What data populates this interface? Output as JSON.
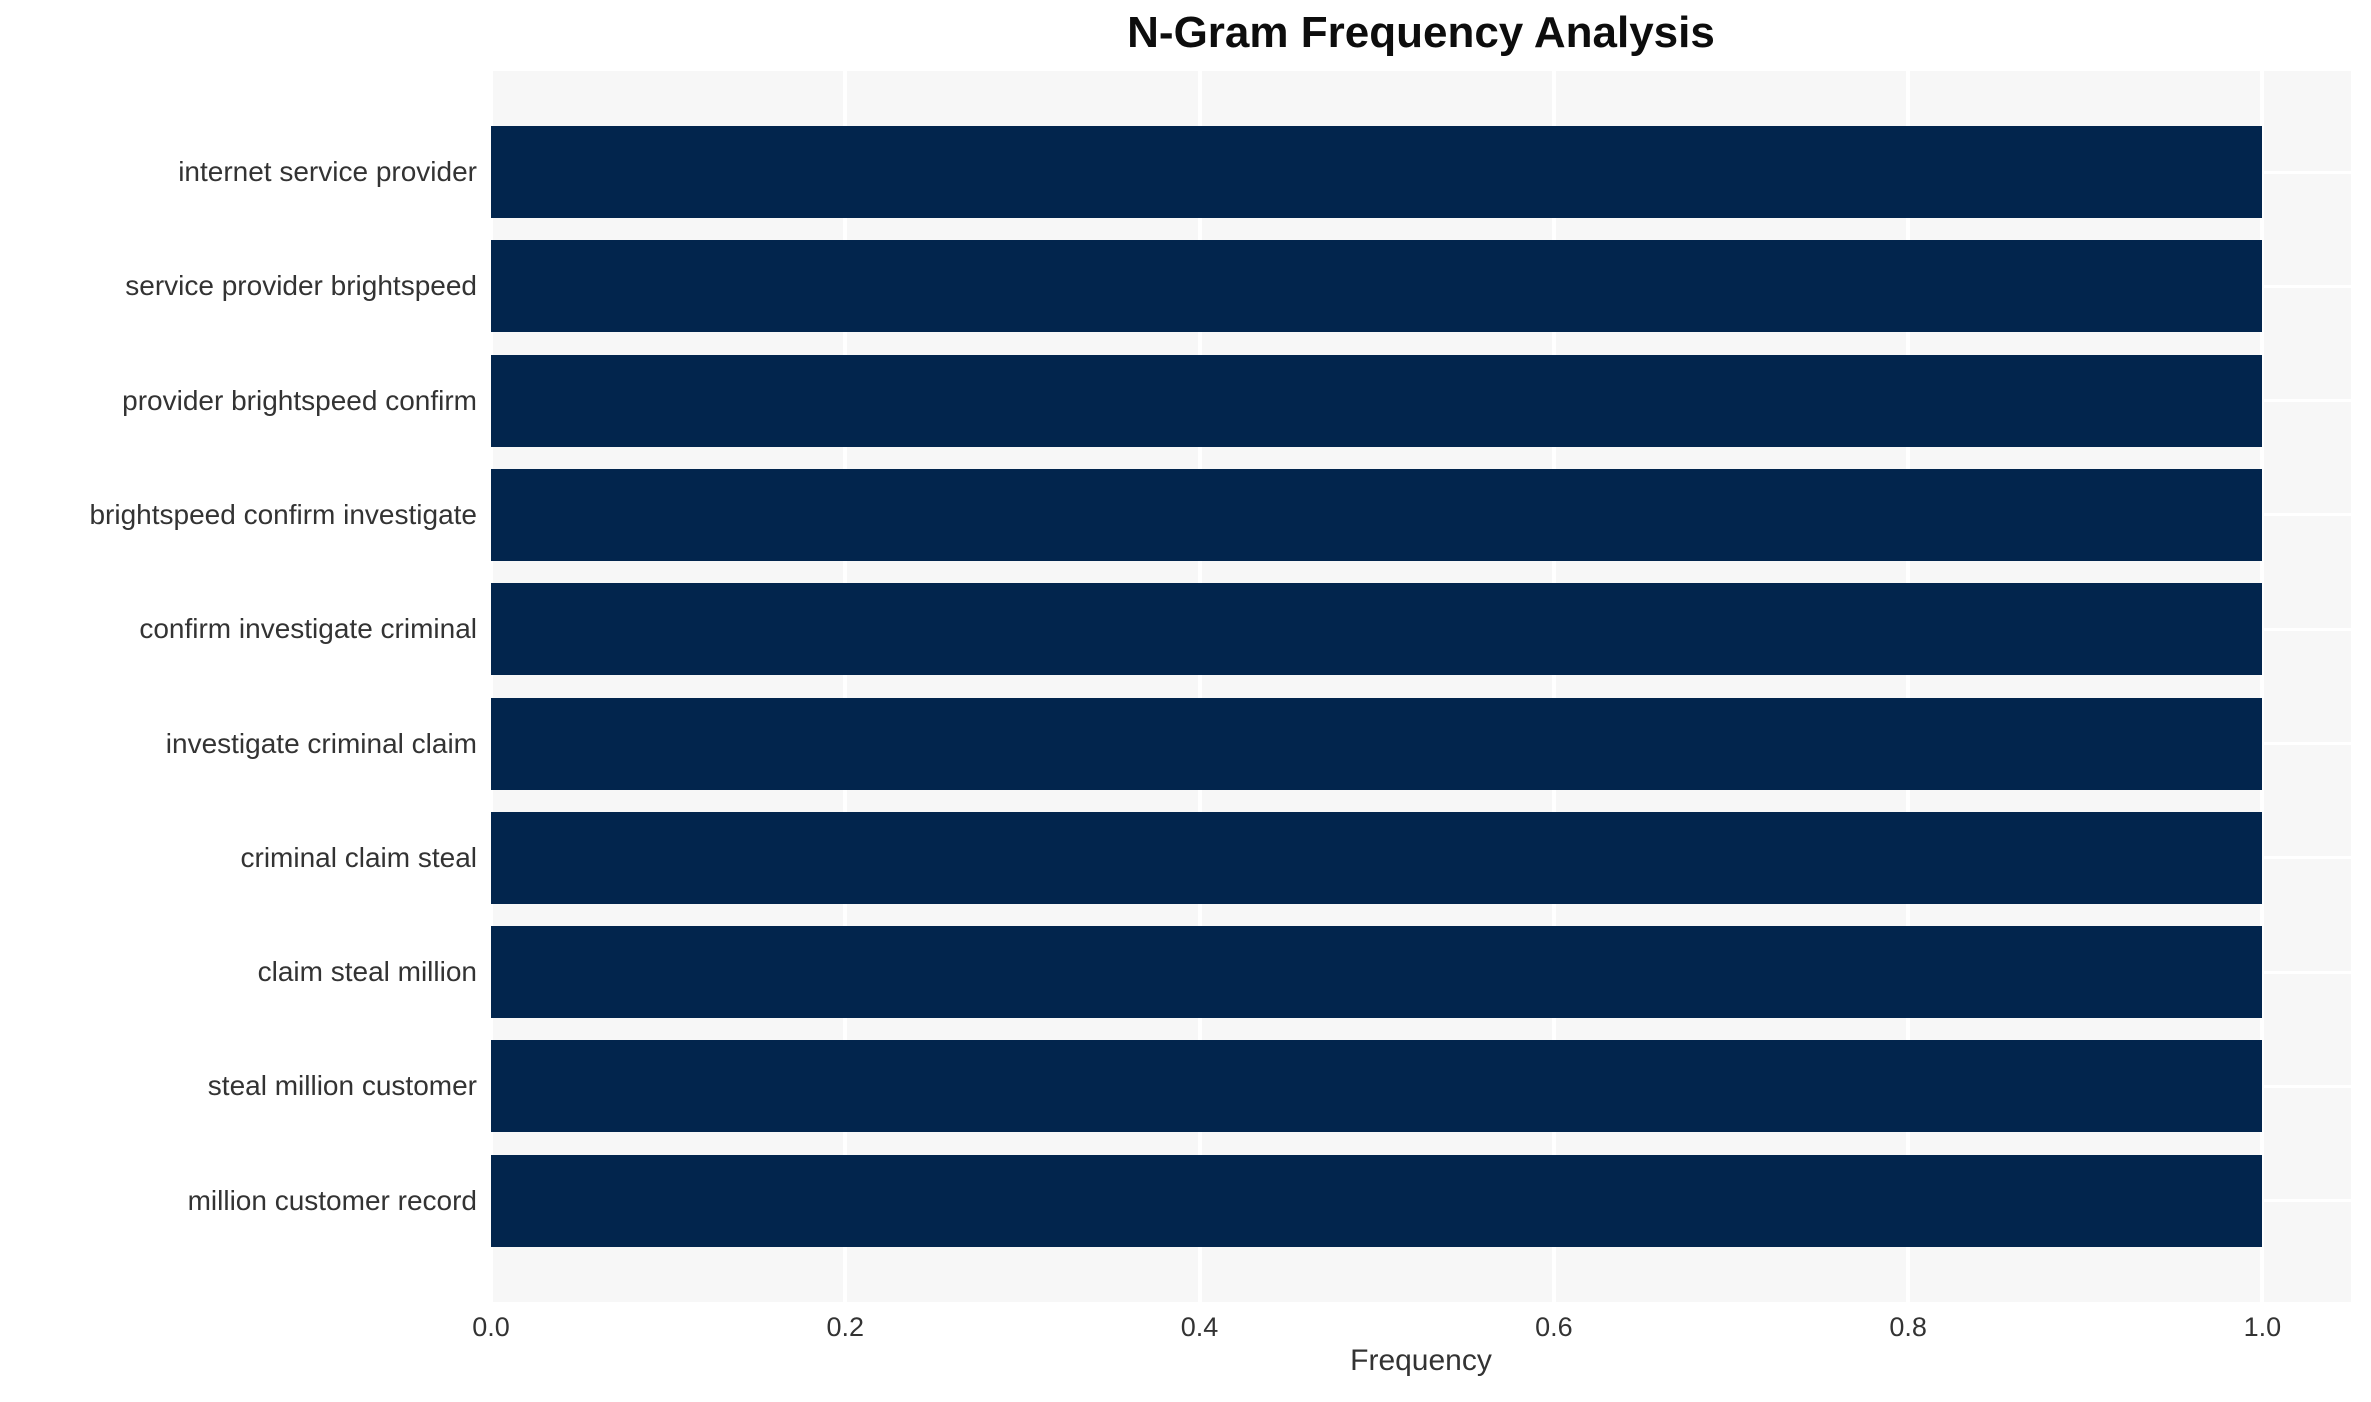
{
  "header": {
    "title": "N-Gram Frequency Analysis"
  },
  "chart_data": {
    "type": "bar",
    "orientation": "horizontal",
    "title": "N-Gram Frequency Analysis",
    "xlabel": "Frequency",
    "ylabel": "",
    "categories": [
      "internet service provider",
      "service provider brightspeed",
      "provider brightspeed confirm",
      "brightspeed confirm investigate",
      "confirm investigate criminal",
      "investigate criminal claim",
      "criminal claim steal",
      "claim steal million",
      "steal million customer",
      "million customer record"
    ],
    "values": [
      1.0,
      1.0,
      1.0,
      1.0,
      1.0,
      1.0,
      1.0,
      1.0,
      1.0,
      1.0
    ],
    "xlim": [
      0,
      1.05
    ],
    "xticks": [
      0.0,
      0.2,
      0.4,
      0.6,
      0.8,
      1.0
    ],
    "xtick_labels": [
      "0.0",
      "0.2",
      "0.4",
      "0.6",
      "0.8",
      "1.0"
    ],
    "grid": true,
    "legend": false,
    "colors": {
      "bar": "#02254d",
      "plot_background": "#f7f7f7",
      "gridline": "#ffffff",
      "text": "#333333",
      "title": "#0d0d0d",
      "page_background": "#ffffff"
    }
  }
}
